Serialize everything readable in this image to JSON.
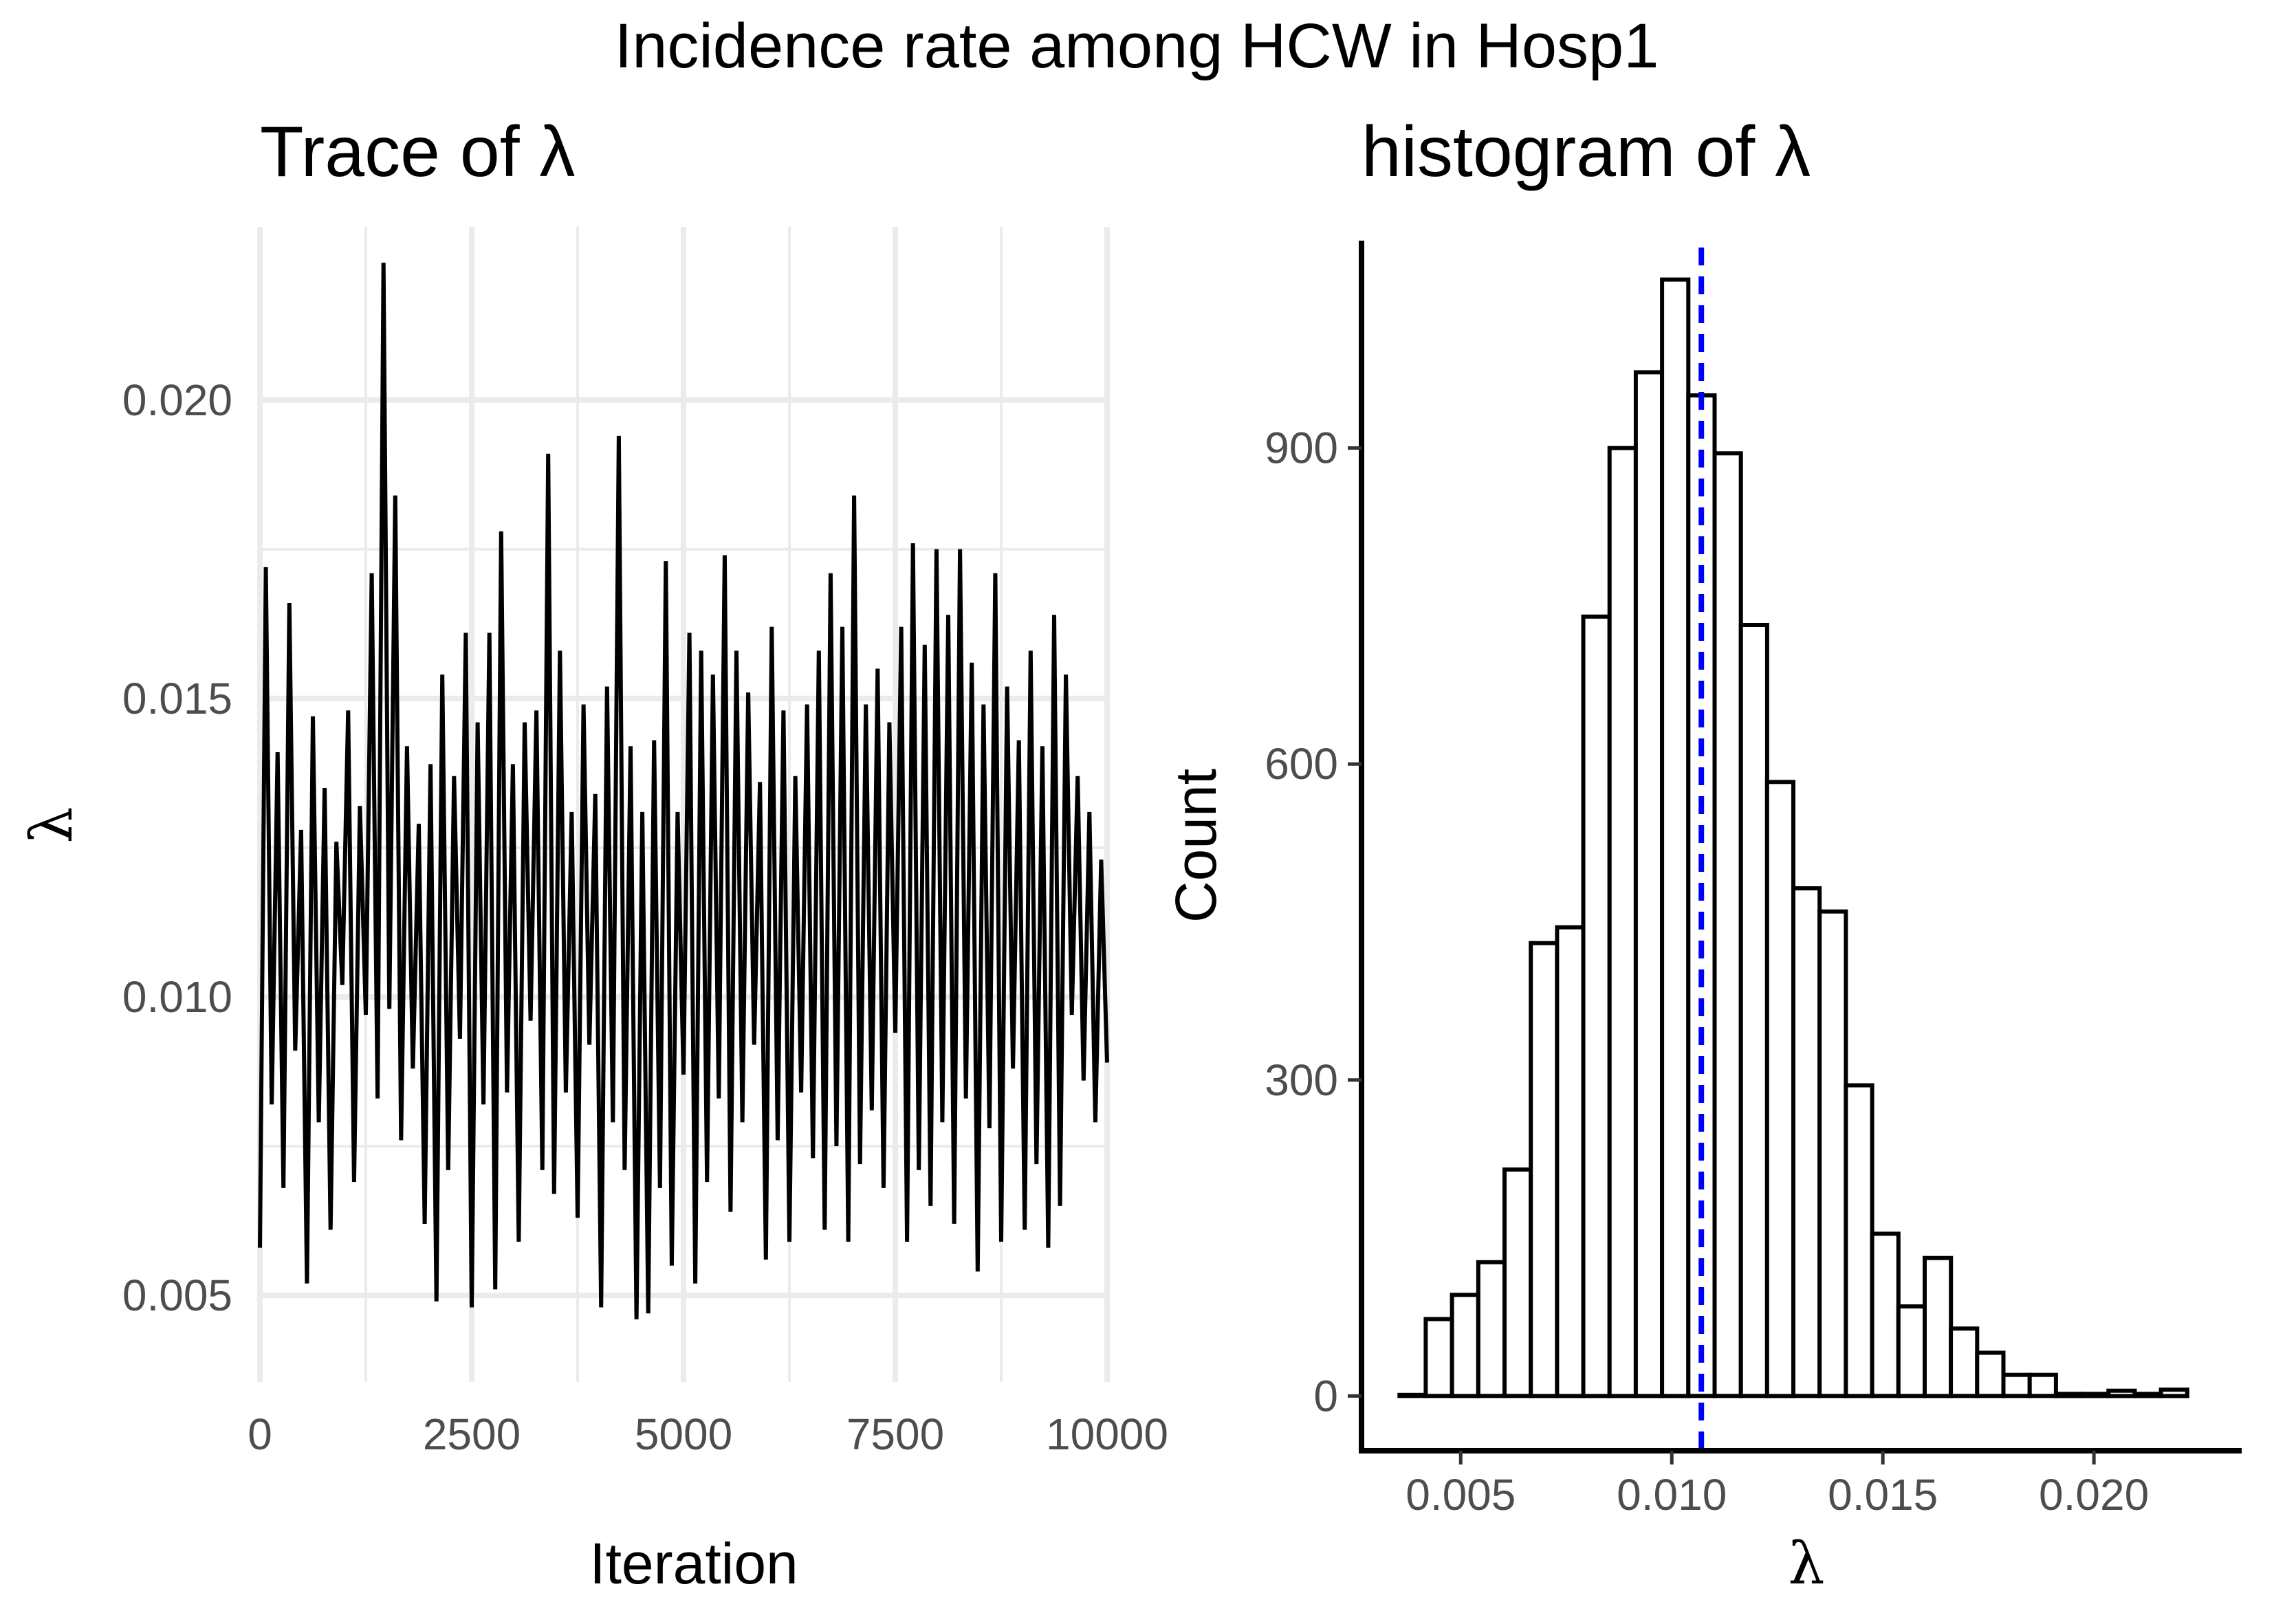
{
  "title": "Incidence rate among HCW in Hosp1",
  "chart_data": [
    {
      "type": "line",
      "title": "Trace of λ",
      "xlabel": "Iteration",
      "ylabel": "λ",
      "xlim": [
        0,
        10000
      ],
      "ylim": [
        0.00355,
        0.0229
      ],
      "x_ticks": [
        0,
        2500,
        5000,
        7500,
        10000
      ],
      "x_tick_labels": [
        "0",
        "2500",
        "5000",
        "7500",
        "10000"
      ],
      "y_ticks": [
        0.005,
        0.01,
        0.015,
        0.02
      ],
      "y_tick_labels": [
        "0.005",
        "0.010",
        "0.015",
        "0.020"
      ],
      "grid": true,
      "series_color": "#000000",
      "series": [
        {
          "values": [
            0.0058,
            0.0172,
            0.0082,
            0.0141,
            0.0068,
            0.0166,
            0.0091,
            0.0128,
            0.0052,
            0.0147,
            0.0079,
            0.0135,
            0.0061,
            0.0126,
            0.0102,
            0.0148,
            0.0069,
            0.0132,
            0.0097,
            0.0171,
            0.0083,
            0.0223,
            0.0098,
            0.0184,
            0.0076,
            0.0142,
            0.0088,
            0.0129,
            0.0062,
            0.0139,
            0.0049,
            0.0154,
            0.0071,
            0.0137,
            0.0093,
            0.0161,
            0.0048,
            0.0146,
            0.0082,
            0.0161,
            0.0051,
            0.0178,
            0.0084,
            0.0139,
            0.0059,
            0.0146,
            0.0096,
            0.0148,
            0.0071,
            0.0191,
            0.0067,
            0.0158,
            0.0084,
            0.0131,
            0.0063,
            0.0149,
            0.0092,
            0.0134,
            0.0048,
            0.0152,
            0.0079,
            0.0194,
            0.0071,
            0.0142,
            0.0046,
            0.0131,
            0.0047,
            0.0143,
            0.0068,
            0.0173,
            0.0055,
            0.0131,
            0.0087,
            0.0161,
            0.0052,
            0.0158,
            0.0069,
            0.0154,
            0.0083,
            0.0174,
            0.0064,
            0.0158,
            0.0079,
            0.0151,
            0.0092,
            0.0136,
            0.0056,
            0.0162,
            0.0076,
            0.0148,
            0.0059,
            0.0137,
            0.0084,
            0.0149,
            0.0073,
            0.0158,
            0.0061,
            0.0171,
            0.0075,
            0.0162,
            0.0059,
            0.0184,
            0.0072,
            0.0149,
            0.0081,
            0.0155,
            0.0068,
            0.0146,
            0.0094,
            0.0162,
            0.0059,
            0.0176,
            0.0071,
            0.0159,
            0.0065,
            0.0175,
            0.0079,
            0.0164,
            0.0062,
            0.0175,
            0.0083,
            0.0156,
            0.0054,
            0.0149,
            0.0078,
            0.0171,
            0.0059,
            0.0152,
            0.0088,
            0.0143,
            0.0061,
            0.0158,
            0.0072,
            0.0142,
            0.0058,
            0.0164,
            0.0065,
            0.0154,
            0.0097,
            0.0137,
            0.0086,
            0.0131,
            0.0079,
            0.0123,
            0.0089
          ]
        }
      ]
    },
    {
      "type": "bar",
      "title": "histogram of λ",
      "xlabel": "λ",
      "ylabel": "Count",
      "xlim": [
        0.00265,
        0.0235
      ],
      "ylim": [
        -52,
        1110
      ],
      "x_ticks": [
        0.005,
        0.01,
        0.015,
        0.02
      ],
      "x_tick_labels": [
        "0.005",
        "0.010",
        "0.015",
        "0.020"
      ],
      "y_ticks": [
        0,
        300,
        600,
        900
      ],
      "y_tick_labels": [
        "0",
        "300",
        "600",
        "900"
      ],
      "grid": false,
      "bar_fill": "#ffffff",
      "bar_stroke": "#000000",
      "bin_width": 0.000622,
      "bin_start": 0.00355,
      "counts": [
        1,
        73,
        96,
        127,
        215,
        430,
        445,
        740,
        900,
        972,
        1060,
        950,
        895,
        732,
        583,
        482,
        460,
        295,
        154,
        85,
        131,
        64,
        41,
        20,
        20,
        2,
        2,
        5,
        2,
        6
      ],
      "reference_line": {
        "x": 0.0107,
        "color": "#0000ff",
        "style": "dashed"
      }
    }
  ]
}
